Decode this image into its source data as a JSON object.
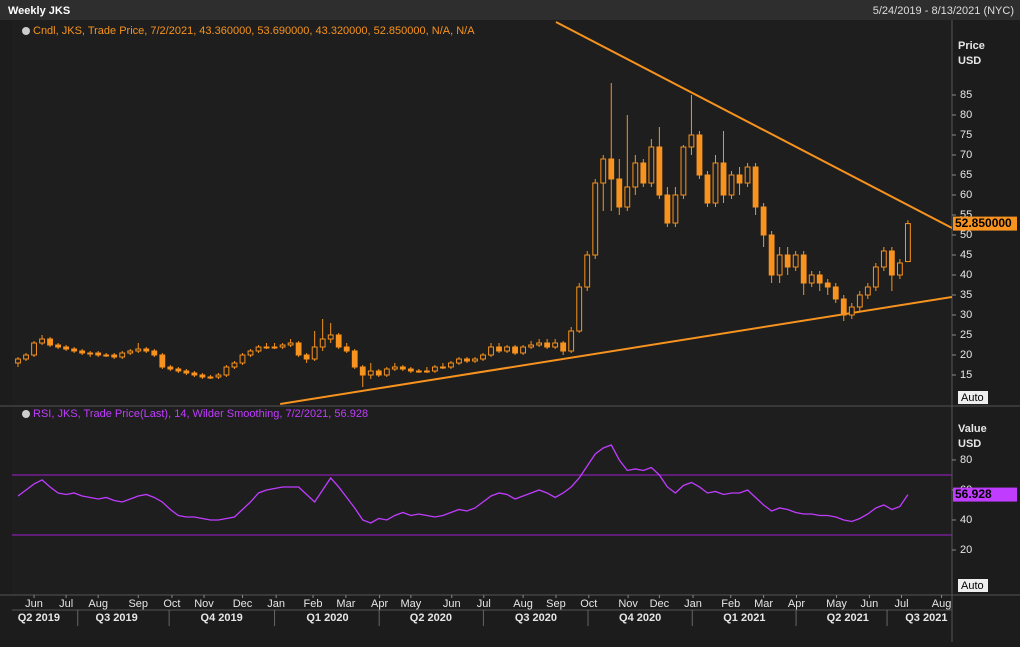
{
  "chart_data": {
    "type": "candlestick",
    "title": "Weekly JKS",
    "date_range": "5/24/2019 - 8/13/2021 (NYC)",
    "legend_text": "Cndl, JKS, Trade Price, 7/2/2021, 43.360000, 53.690000, 43.320000, 52.850000, N/A, N/A",
    "y_label": [
      "Price",
      "USD"
    ],
    "auto_label": "Auto",
    "color": "#f7931e",
    "last_label": "52.850000",
    "open": [
      18,
      19,
      20,
      23,
      24,
      22.5,
      22,
      21.5,
      21,
      20.5,
      20.5,
      20,
      20,
      19.5,
      20.5,
      21,
      21.5,
      21,
      20,
      17,
      16.5,
      16,
      15.5,
      15,
      14.5,
      14.5,
      15,
      17,
      18,
      20,
      21,
      22,
      22,
      22,
      22.5,
      23,
      20,
      19,
      22,
      24,
      25,
      22,
      21,
      17,
      15,
      16,
      15,
      16.5,
      17,
      16.5,
      16,
      16,
      16,
      17,
      17,
      18,
      19,
      18.5,
      19,
      20,
      22,
      21,
      22,
      20.5,
      22,
      22.5,
      23,
      22,
      23,
      21,
      26,
      37,
      45,
      63,
      69,
      64,
      57,
      62,
      68,
      63,
      72,
      60,
      53,
      60,
      72,
      75,
      65,
      58,
      68,
      60,
      65,
      63,
      67,
      57,
      50,
      40,
      45,
      42,
      45,
      38,
      40,
      38,
      37,
      34,
      30,
      32,
      35,
      37,
      42,
      46,
      40,
      43.36
    ],
    "high": [
      19.5,
      20.5,
      23.5,
      25,
      24.5,
      23,
      22.5,
      22,
      21.5,
      21,
      21,
      20.5,
      20.5,
      21,
      21.5,
      23,
      22,
      21.5,
      20.5,
      17.5,
      17,
      16.5,
      16,
      15.5,
      15,
      15.5,
      17.5,
      18.5,
      20.5,
      21.5,
      22.5,
      23,
      23,
      23,
      24,
      23.5,
      20.5,
      26,
      29,
      28,
      25.5,
      23,
      21.5,
      17.5,
      18,
      16.5,
      17,
      18,
      17.5,
      17,
      16.5,
      17,
      17.5,
      18,
      18.5,
      19.5,
      19.5,
      19.5,
      20.5,
      23,
      23,
      22.5,
      22.5,
      22.5,
      23.5,
      24,
      24,
      24,
      23.5,
      27,
      38,
      46,
      64,
      70,
      88,
      69,
      80,
      70,
      69,
      74,
      77,
      62,
      62,
      72.5,
      85,
      76,
      66,
      70,
      76,
      66,
      67,
      68,
      68,
      58,
      51,
      47,
      47,
      46,
      46,
      41,
      41,
      39,
      38,
      35,
      33,
      36,
      38,
      43,
      47,
      47,
      44,
      53.69
    ],
    "low": [
      17,
      18.5,
      19.5,
      22.5,
      22,
      21.5,
      21,
      20.5,
      20,
      19.5,
      19.5,
      19.5,
      19,
      19,
      20,
      20.5,
      20.5,
      19.5,
      16.5,
      16,
      15.5,
      15,
      14.5,
      14,
      14,
      14,
      14.5,
      16.5,
      17.5,
      19.5,
      20.5,
      21.5,
      21.5,
      21.5,
      22,
      19.5,
      18,
      18.5,
      21,
      23,
      21.5,
      20.5,
      16.5,
      12,
      14,
      14.5,
      14.5,
      16,
      16,
      15.5,
      15.5,
      15.5,
      15.5,
      16.5,
      16.5,
      17.5,
      18,
      18,
      18.5,
      19.5,
      20.5,
      20.5,
      20,
      20,
      21.5,
      22,
      21.5,
      21.5,
      20,
      20.5,
      25.5,
      36,
      44,
      56,
      56,
      55,
      56,
      60,
      62,
      62,
      59,
      52,
      52,
      59,
      70,
      64,
      57,
      57,
      58,
      59,
      60,
      62,
      55,
      47,
      38,
      38,
      40,
      41,
      35,
      37,
      36,
      35,
      33,
      28.5,
      29,
      31,
      34,
      36,
      41,
      36,
      39,
      43.32
    ],
    "close": [
      19,
      20,
      23,
      24,
      22.5,
      22,
      21.5,
      21,
      20.5,
      20.5,
      20,
      20,
      19.5,
      20.5,
      21,
      21.5,
      21,
      20,
      17,
      16.5,
      16,
      15.5,
      15,
      14.5,
      14.5,
      15,
      17,
      18,
      20,
      21,
      22,
      22,
      22,
      22.5,
      23,
      20,
      19,
      22,
      24,
      25,
      22,
      21,
      17,
      15,
      16,
      15,
      16.5,
      17,
      16.5,
      16,
      16,
      16,
      17,
      17,
      18,
      19,
      18.5,
      19,
      20,
      22,
      21,
      22,
      20.5,
      22,
      22.5,
      23,
      22,
      23,
      21,
      26,
      37,
      45,
      63,
      69,
      64,
      57,
      62,
      68,
      63,
      72,
      60,
      53,
      60,
      72,
      75,
      65,
      58,
      68,
      60,
      65,
      63,
      67,
      57,
      50,
      40,
      45,
      42,
      45,
      38,
      40,
      38,
      37,
      34,
      30,
      32,
      35,
      37,
      42,
      46,
      40,
      43,
      52.85
    ],
    "trendlines": [
      {
        "color": "#f7931e",
        "x": [
          67.1,
          116.5
        ],
        "y": [
          103.25,
          51.75
        ]
      },
      {
        "color": "#f7931e",
        "x": [
          32.7,
          116.5
        ],
        "y": [
          7.75,
          34.5
        ]
      }
    ],
    "ylim": [
      7.5,
      103.75
    ],
    "yticks": [
      15,
      20,
      25,
      30,
      35,
      40,
      45,
      50,
      55,
      60,
      65,
      70,
      75,
      80,
      85
    ],
    "xlim": [
      -0.75,
      116.5
    ],
    "xticks": [
      {
        "value": 2,
        "label": "Jun"
      },
      {
        "value": 6,
        "label": "Jul"
      },
      {
        "value": 10,
        "label": "Aug"
      },
      {
        "value": 15,
        "label": "Sep"
      },
      {
        "value": 19.2,
        "label": "Oct"
      },
      {
        "value": 23.2,
        "label": "Nov"
      },
      {
        "value": 28,
        "label": "Dec"
      },
      {
        "value": 32.2,
        "label": "Jan"
      },
      {
        "value": 36.8,
        "label": "Feb"
      },
      {
        "value": 40.9,
        "label": "Mar"
      },
      {
        "value": 45.1,
        "label": "Apr"
      },
      {
        "value": 49,
        "label": "May"
      },
      {
        "value": 54.1,
        "label": "Jun"
      },
      {
        "value": 58.1,
        "label": "Jul"
      },
      {
        "value": 63,
        "label": "Aug"
      },
      {
        "value": 67.1,
        "label": "Sep"
      },
      {
        "value": 71.2,
        "label": "Oct"
      },
      {
        "value": 76.1,
        "label": "Nov"
      },
      {
        "value": 80,
        "label": "Dec"
      },
      {
        "value": 84.2,
        "label": "Jan"
      },
      {
        "value": 88.9,
        "label": "Feb"
      },
      {
        "value": 93,
        "label": "Mar"
      },
      {
        "value": 97.1,
        "label": "Apr"
      },
      {
        "value": 102.1,
        "label": "May"
      },
      {
        "value": 106.2,
        "label": "Jun"
      },
      {
        "value": 110.2,
        "label": "Jul"
      },
      {
        "value": 115.2,
        "label": "Aug"
      }
    ],
    "quarter_ticks": [
      {
        "value": 2.6,
        "label": "Q2 2019"
      },
      {
        "value": 12.3,
        "label": "Q3 2019"
      },
      {
        "value": 25.4,
        "label": "Q4 2019"
      },
      {
        "value": 38.6,
        "label": "Q1 2020"
      },
      {
        "value": 51.5,
        "label": "Q2 2020"
      },
      {
        "value": 64.6,
        "label": "Q3 2020"
      },
      {
        "value": 77.6,
        "label": "Q4 2020"
      },
      {
        "value": 90.6,
        "label": "Q1 2021"
      },
      {
        "value": 103.5,
        "label": "Q2 2021"
      },
      {
        "value": 113.3,
        "label": "Q3 2021"
      }
    ],
    "rsi": {
      "legend_text": "RSI, JKS, Trade Price(Last), 14, Wilder Smoothing, 7/2/2021, 56.928",
      "y_label": [
        "Value",
        "USD"
      ],
      "color": "#c03cff",
      "level_color": "#a020d0",
      "last_label": "56.928",
      "levels": [
        30,
        70
      ],
      "ylim": [
        -10,
        115.3
      ],
      "yticks": [
        20,
        40,
        60,
        80
      ],
      "values": [
        56,
        60,
        64,
        66.7,
        62,
        58,
        57,
        58,
        56,
        55,
        54,
        55,
        53,
        52,
        54,
        56,
        57,
        55,
        52,
        47,
        43,
        42,
        42,
        41,
        40,
        40,
        41,
        42,
        47,
        52,
        58,
        60,
        61,
        62,
        62,
        62,
        57,
        52,
        60,
        68,
        62,
        55,
        48,
        40,
        38,
        41,
        40,
        43,
        45,
        43,
        44,
        43,
        42,
        43,
        45,
        47,
        46,
        48,
        52,
        56,
        58,
        57,
        54,
        56,
        58,
        60,
        58,
        55,
        58,
        62,
        68,
        76,
        84,
        88,
        90,
        80,
        73,
        74,
        73,
        75,
        70,
        62,
        58,
        63,
        65,
        62,
        58,
        59,
        57,
        58,
        58,
        60,
        55,
        50,
        46,
        48,
        47,
        45,
        44,
        44,
        43,
        43,
        42,
        40,
        39,
        41,
        44,
        48,
        50,
        47,
        49,
        56.928
      ]
    }
  }
}
